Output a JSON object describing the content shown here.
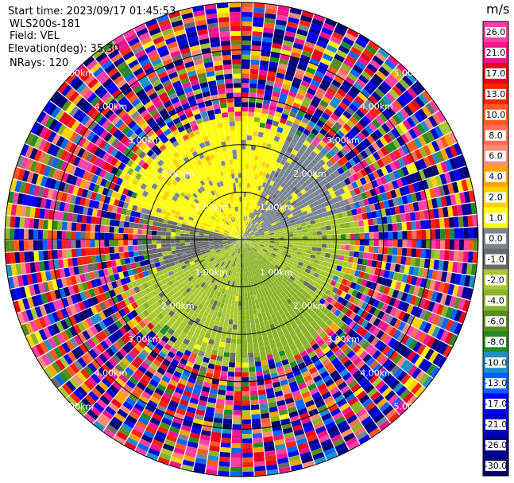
{
  "info": {
    "start_time": "Start time: 2023/09/17 01:45:53",
    "site": "WLS200s-181",
    "field": "Field: VEL",
    "elevation": "Elevation(deg): 35.30",
    "nrays": "NRays: 120"
  },
  "chart_data": {
    "type": "heatmap",
    "projection": "polar-ppi",
    "field": "VEL",
    "units": "m/s",
    "nrays": 120,
    "elevation_deg": 35.3,
    "range_ring_labels": [
      "1.00km",
      "2.00km",
      "3.00km",
      "4.00km",
      "5.00km"
    ],
    "colorbar": {
      "unit": "m/s",
      "min": -30.0,
      "max": 30.0,
      "tick_labels": [
        "26.0",
        "21.0",
        "17.0",
        "13.0",
        "10.0",
        "8.0",
        "6.0",
        "4.0",
        "2.0",
        "1.0",
        "0.0",
        "-1.0",
        "-2.0",
        "-4.0",
        "-6.0",
        "-8.0",
        "-10.0",
        "-13.0",
        "-17.0",
        "-21.0",
        "-26.0",
        "-30.0"
      ],
      "bins": [
        {
          "from": 26.0,
          "to": 30.0,
          "color": "#ff3fa8"
        },
        {
          "from": 21.0,
          "to": 26.0,
          "color": "#f0148c"
        },
        {
          "from": 17.0,
          "to": 21.0,
          "color": "#e8001e"
        },
        {
          "from": 13.0,
          "to": 17.0,
          "color": "#ff2200"
        },
        {
          "from": 10.0,
          "to": 13.0,
          "color": "#ff5a1e"
        },
        {
          "from": 8.0,
          "to": 10.0,
          "color": "#ff6e5a"
        },
        {
          "from": 6.0,
          "to": 8.0,
          "color": "#ff8c78"
        },
        {
          "from": 4.0,
          "to": 6.0,
          "color": "#ffa500"
        },
        {
          "from": 2.0,
          "to": 4.0,
          "color": "#ffd200"
        },
        {
          "from": 1.0,
          "to": 2.0,
          "color": "#ffff00"
        },
        {
          "from": 0.0,
          "to": 1.0,
          "color": "#7a8594"
        },
        {
          "from": -1.0,
          "to": 0.0,
          "color": "#6a6a6a"
        },
        {
          "from": -2.0,
          "to": -1.0,
          "color": "#a8c832"
        },
        {
          "from": -4.0,
          "to": -2.0,
          "color": "#8ab428"
        },
        {
          "from": -6.0,
          "to": -4.0,
          "color": "#5a8c1e"
        },
        {
          "from": -8.0,
          "to": -6.0,
          "color": "#228b22"
        },
        {
          "from": -10.0,
          "to": -8.0,
          "color": "#1e90c8"
        },
        {
          "from": -13.0,
          "to": -10.0,
          "color": "#0064ff"
        },
        {
          "from": -17.0,
          "to": -13.0,
          "color": "#0000ff"
        },
        {
          "from": -21.0,
          "to": -17.0,
          "color": "#0000c8"
        },
        {
          "from": -26.0,
          "to": -21.0,
          "color": "#000096"
        },
        {
          "from": -30.0,
          "to": -26.0,
          "color": "#00006e"
        }
      ]
    },
    "sectors": [
      {
        "az_from": 285,
        "az_to": 25,
        "velocity": 1.5,
        "max_range_km": 3.0
      },
      {
        "az_from": 25,
        "az_to": 75,
        "velocity": 0.5,
        "max_range_km": 3.0
      },
      {
        "az_from": 75,
        "az_to": 130,
        "velocity": -1.5,
        "max_range_km": 2.7
      },
      {
        "az_from": 130,
        "az_to": 180,
        "velocity": -3.0,
        "max_range_km": 3.0
      },
      {
        "az_from": 180,
        "az_to": 250,
        "velocity": -1.5,
        "max_range_km": 3.0
      },
      {
        "az_from": 250,
        "az_to": 285,
        "velocity": -0.5,
        "max_range_km": 2.4
      }
    ],
    "max_range_km": 5.0
  }
}
